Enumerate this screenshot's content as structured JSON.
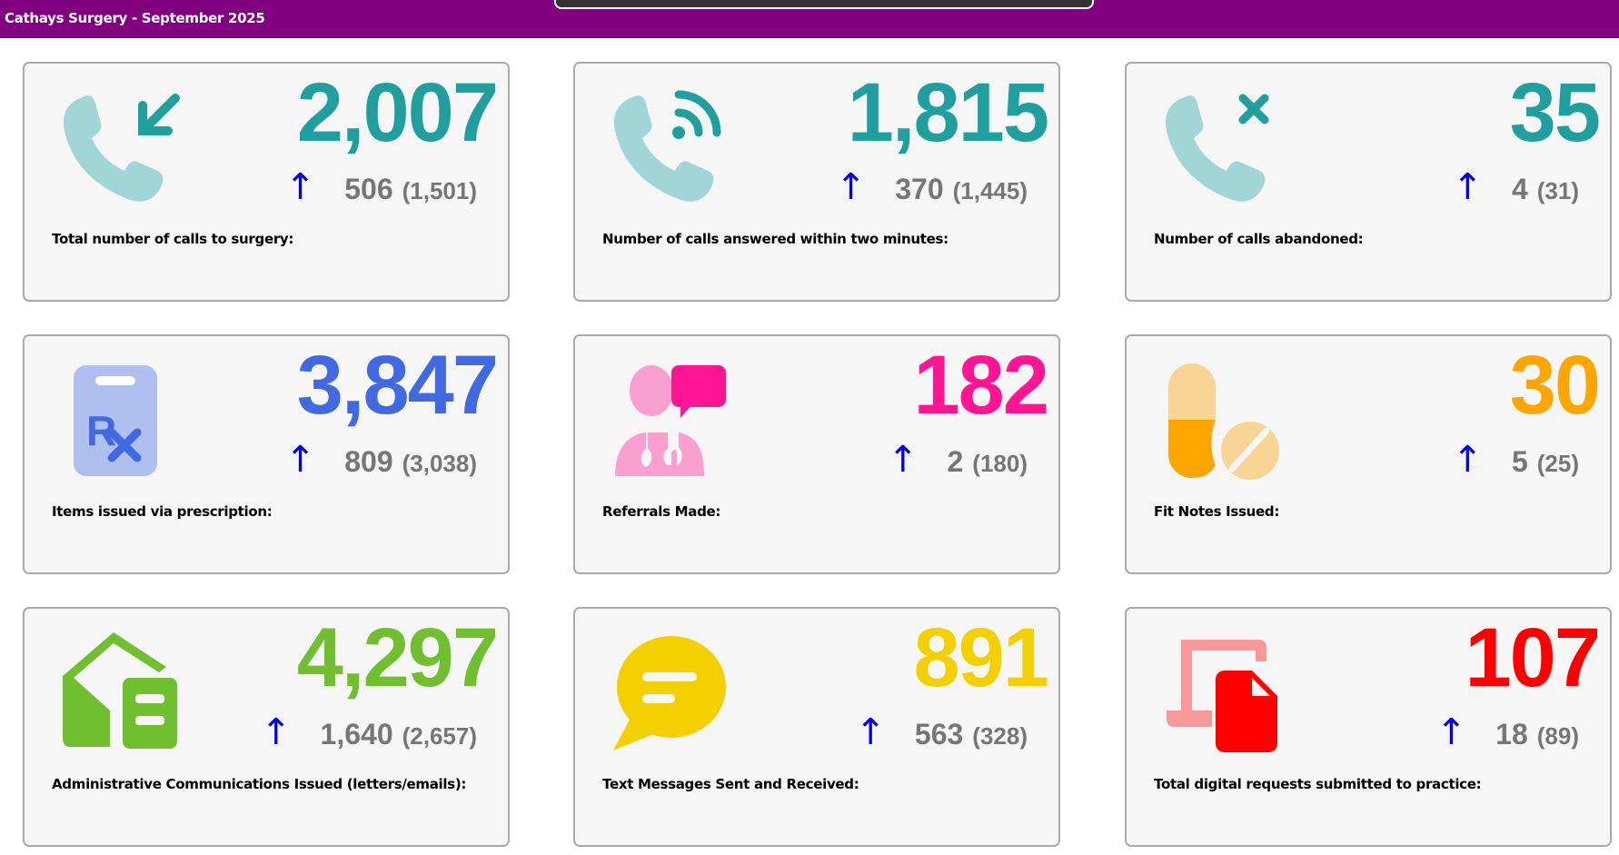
{
  "header": {
    "title": "Cathays Surgery - September 2025"
  },
  "cards": [
    {
      "value": "2,007",
      "change": "506",
      "previous": "(1,501)",
      "label": "Total number of calls to surgery:",
      "icon": "incoming-call-icon",
      "color": "#1fa09e",
      "direction": "up"
    },
    {
      "value": "1,815",
      "change": "370",
      "previous": "(1,445)",
      "label": "Number of calls answered within two minutes:",
      "icon": "call-answered-icon",
      "color": "#1fa09e",
      "direction": "up"
    },
    {
      "value": "35",
      "change": "4",
      "previous": "(31)",
      "label": "Number of calls abandoned:",
      "icon": "call-abandoned-icon",
      "color": "#1fa09e",
      "direction": "up"
    },
    {
      "value": "3,847",
      "change": "809",
      "previous": "(3,038)",
      "label": "Items issued via prescription:",
      "icon": "prescription-icon",
      "color": "#4169e1",
      "direction": "up"
    },
    {
      "value": "182",
      "change": "2",
      "previous": "(180)",
      "label": "Referrals Made:",
      "icon": "doctor-consult-icon",
      "color": "#ff1493",
      "direction": "up"
    },
    {
      "value": "30",
      "change": "5",
      "previous": "(25)",
      "label": "Fit Notes Issued:",
      "icon": "pills-icon",
      "color": "#ffa500",
      "direction": "up"
    },
    {
      "value": "4,297",
      "change": "1,640",
      "previous": "(2,657)",
      "label": "Administrative Communications Issued (letters/emails):",
      "icon": "house-letter-icon",
      "color": "#6fbf2f",
      "direction": "up"
    },
    {
      "value": "891",
      "change": "563",
      "previous": "(328)",
      "label": "Text Messages Sent and Received:",
      "icon": "chat-bubble-icon",
      "color": "#f4d000",
      "direction": "up"
    },
    {
      "value": "107",
      "change": "18",
      "previous": "(89)",
      "label": "Total digital requests submitted to practice:",
      "icon": "digital-request-icon",
      "color": "#ff0000",
      "direction": "up"
    }
  ]
}
